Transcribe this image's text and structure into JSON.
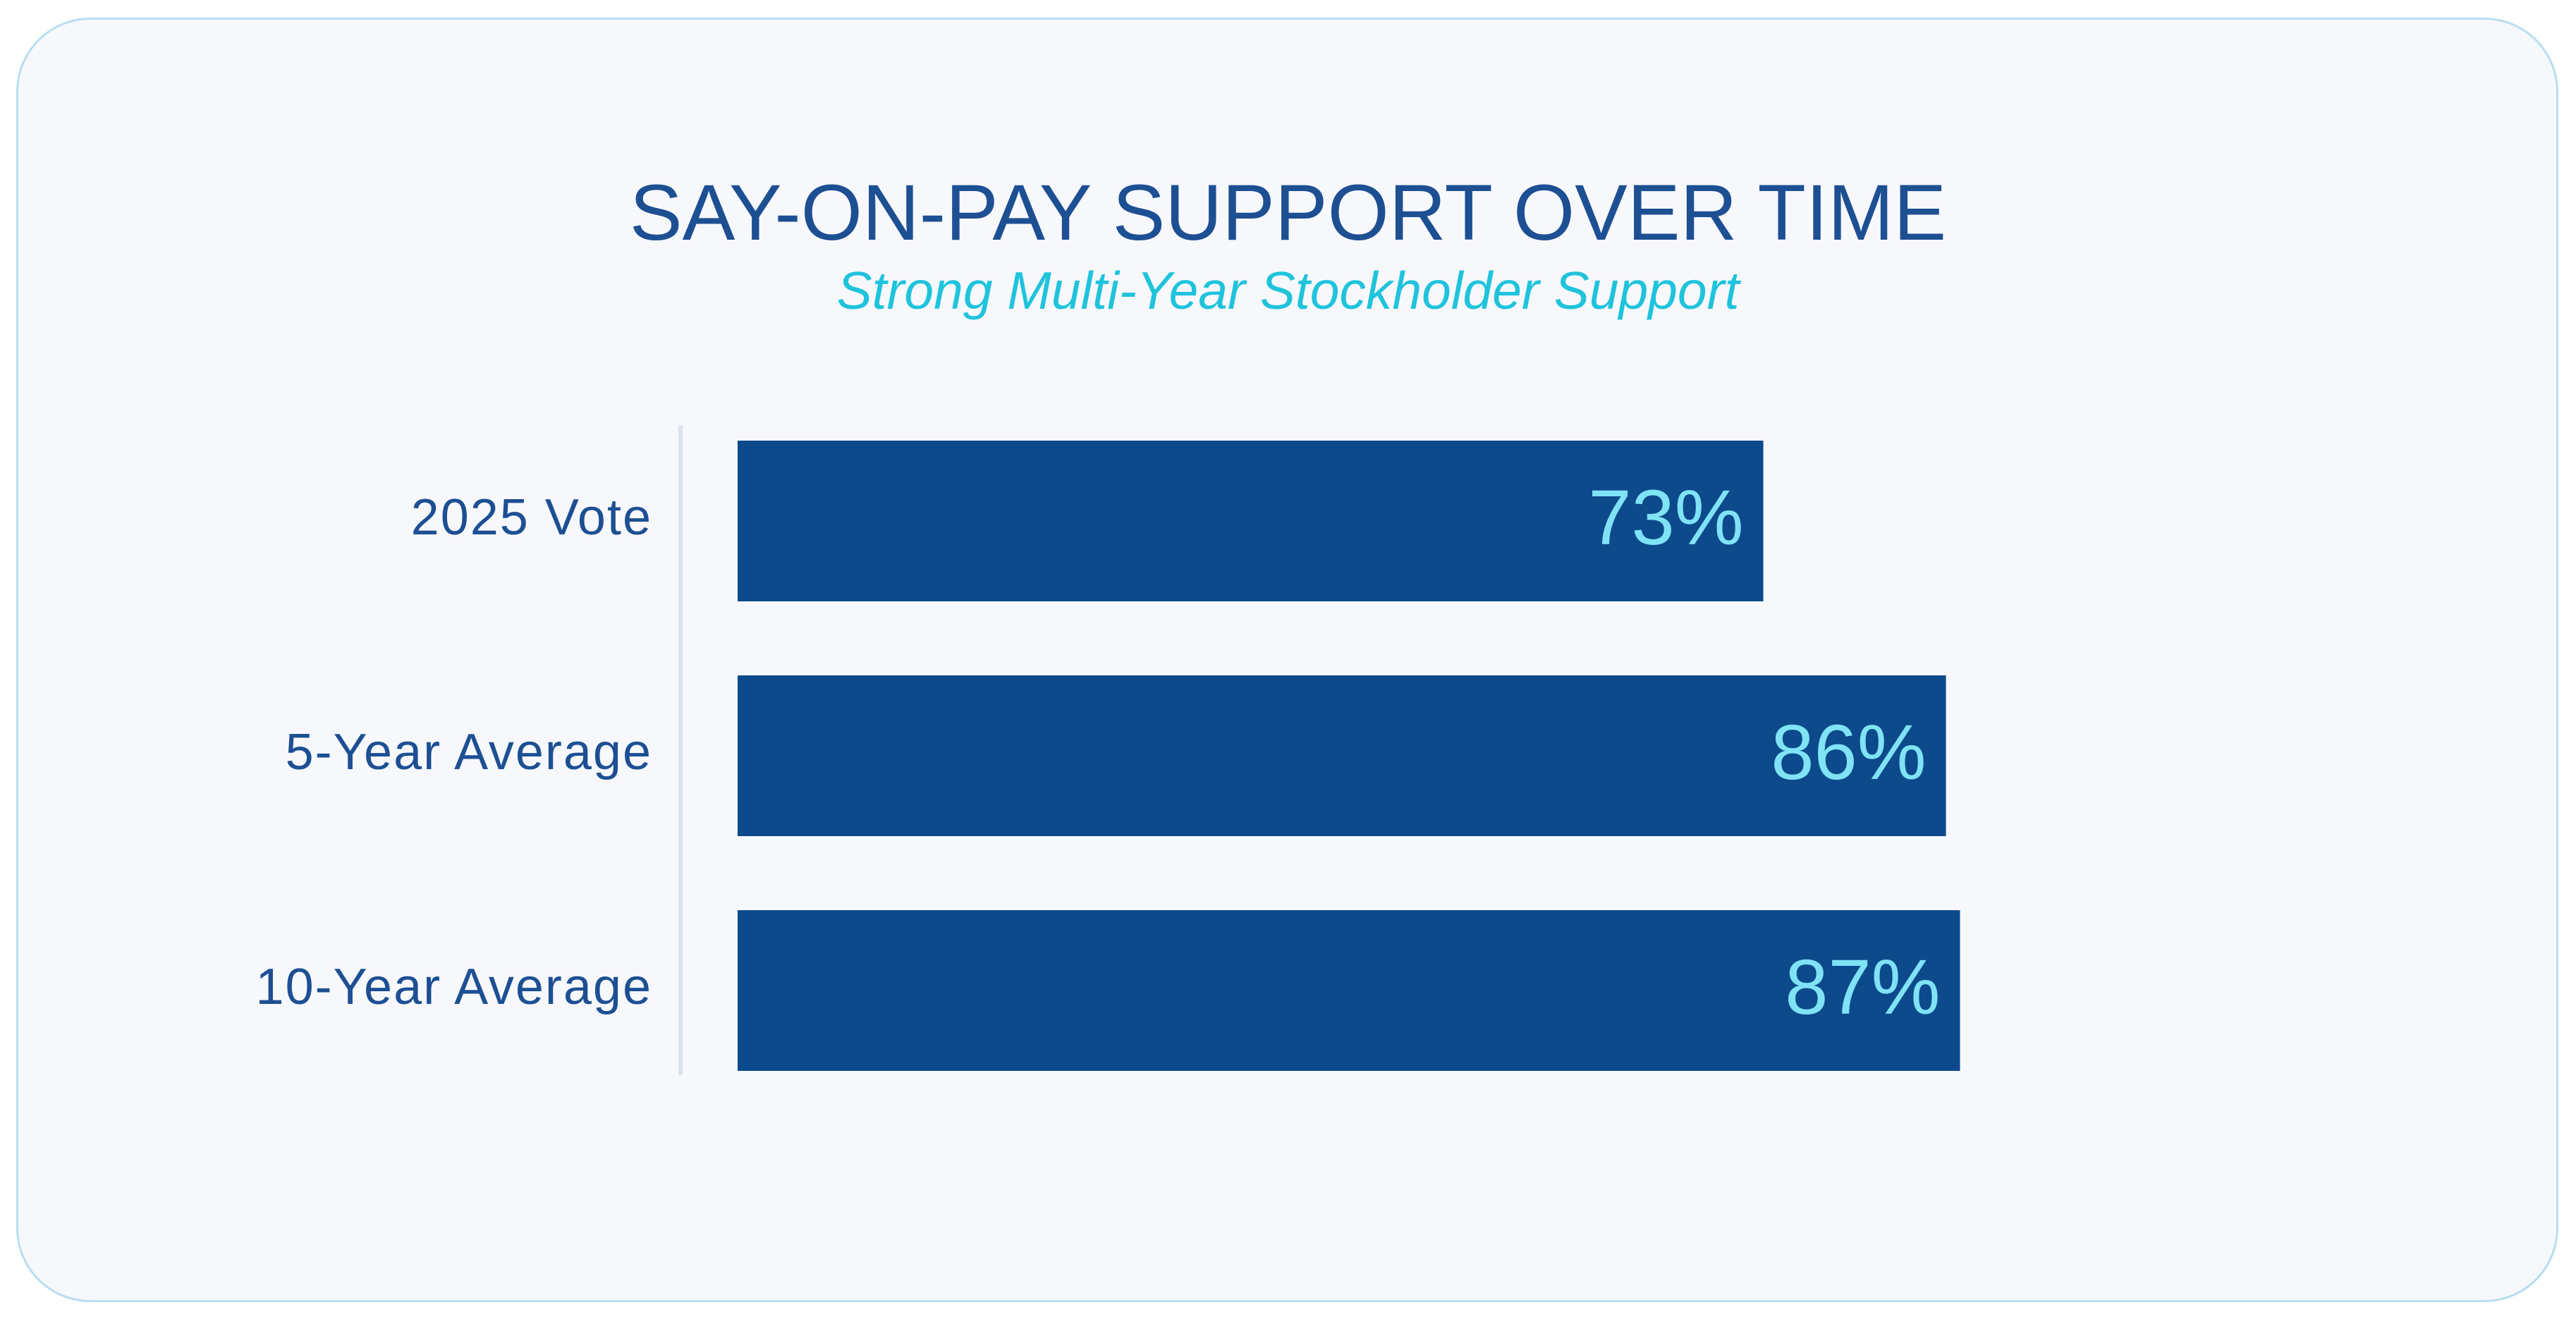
{
  "colors": {
    "card_background": "#f7f8fc",
    "card_border": "#b7def0",
    "title": "#1d4f93",
    "subtitle": "#1fc3dc",
    "bar": "#0c4a8c",
    "value_label": "#7fe3f5",
    "category_label": "#1d4f93"
  },
  "chart_data": {
    "type": "bar",
    "orientation": "horizontal",
    "title": "SAY-ON-PAY SUPPORT OVER TIME",
    "subtitle": "Strong Multi-Year Stockholder Support",
    "categories": [
      "2025 Vote",
      "5-Year Average",
      "10-Year Average"
    ],
    "values": [
      73,
      86,
      87
    ],
    "value_labels": [
      "73%",
      "86%",
      "87%"
    ],
    "unit": "%",
    "xlim": [
      0,
      100
    ],
    "grid": false,
    "legend": "none"
  }
}
